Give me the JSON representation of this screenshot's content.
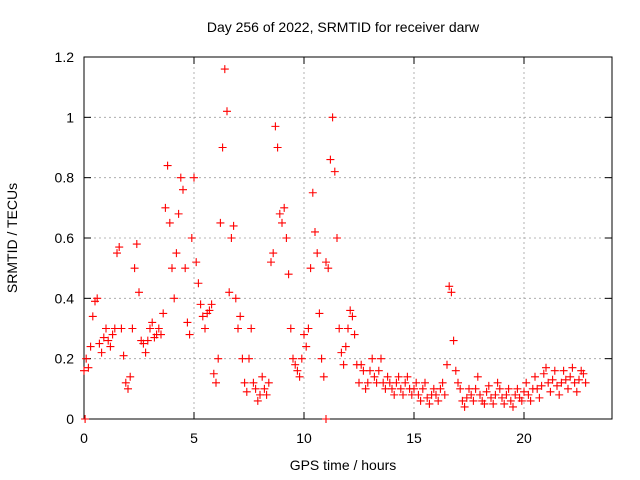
{
  "chart_data": {
    "type": "scatter",
    "title": "Day 256 of 2022, SRMTID for receiver darw",
    "xlabel": "GPS time / hours",
    "ylabel": "SRMTID / TECUs",
    "xlim": [
      0,
      24
    ],
    "ylim": [
      0,
      1.2
    ],
    "grid": true,
    "marker": "+",
    "color": "#ff0000",
    "x_ticks": [
      0,
      5,
      10,
      15,
      20
    ],
    "x_tick_labels": [
      "0",
      "5",
      "10",
      "15",
      "20"
    ],
    "y_ticks": [
      0,
      0.2,
      0.4,
      0.6,
      0.8,
      1.0,
      1.2
    ],
    "y_tick_labels": [
      "0",
      "0.2",
      "0.4",
      "0.6",
      "0.8",
      "1",
      "1.2"
    ],
    "series": [
      {
        "name": "SRMTID",
        "points": [
          [
            0.0,
            0.16
          ],
          [
            0.1,
            0.2
          ],
          [
            0.2,
            0.17
          ],
          [
            0.3,
            0.24
          ],
          [
            0.4,
            0.34
          ],
          [
            0.5,
            0.39
          ],
          [
            0.6,
            0.4
          ],
          [
            0.7,
            0.25
          ],
          [
            0.8,
            0.22
          ],
          [
            0.9,
            0.27
          ],
          [
            1.0,
            0.3
          ],
          [
            1.1,
            0.26
          ],
          [
            1.2,
            0.24
          ],
          [
            1.3,
            0.28
          ],
          [
            1.4,
            0.3
          ],
          [
            1.5,
            0.55
          ],
          [
            1.6,
            0.57
          ],
          [
            1.7,
            0.3
          ],
          [
            1.8,
            0.21
          ],
          [
            1.9,
            0.12
          ],
          [
            2.0,
            0.1
          ],
          [
            2.1,
            0.14
          ],
          [
            2.2,
            0.3
          ],
          [
            2.3,
            0.5
          ],
          [
            2.4,
            0.58
          ],
          [
            2.5,
            0.42
          ],
          [
            2.6,
            0.26
          ],
          [
            2.7,
            0.25
          ],
          [
            2.8,
            0.22
          ],
          [
            2.9,
            0.26
          ],
          [
            3.0,
            0.3
          ],
          [
            3.1,
            0.32
          ],
          [
            3.2,
            0.27
          ],
          [
            3.3,
            0.28
          ],
          [
            3.4,
            0.3
          ],
          [
            3.5,
            0.28
          ],
          [
            3.6,
            0.35
          ],
          [
            3.7,
            0.7
          ],
          [
            3.8,
            0.84
          ],
          [
            3.9,
            0.65
          ],
          [
            4.0,
            0.5
          ],
          [
            4.1,
            0.4
          ],
          [
            4.2,
            0.55
          ],
          [
            4.3,
            0.68
          ],
          [
            4.4,
            0.8
          ],
          [
            4.5,
            0.76
          ],
          [
            4.6,
            0.5
          ],
          [
            4.7,
            0.32
          ],
          [
            4.8,
            0.28
          ],
          [
            4.9,
            0.6
          ],
          [
            5.0,
            0.8
          ],
          [
            5.1,
            0.52
          ],
          [
            5.2,
            0.45
          ],
          [
            5.3,
            0.38
          ],
          [
            5.4,
            0.34
          ],
          [
            5.5,
            0.3
          ],
          [
            5.6,
            0.35
          ],
          [
            5.7,
            0.36
          ],
          [
            5.8,
            0.38
          ],
          [
            5.9,
            0.15
          ],
          [
            6.0,
            0.12
          ],
          [
            6.1,
            0.2
          ],
          [
            6.2,
            0.65
          ],
          [
            6.3,
            0.9
          ],
          [
            6.4,
            1.16
          ],
          [
            6.5,
            1.02
          ],
          [
            6.6,
            0.42
          ],
          [
            6.7,
            0.6
          ],
          [
            6.8,
            0.64
          ],
          [
            6.9,
            0.4
          ],
          [
            7.0,
            0.3
          ],
          [
            7.1,
            0.34
          ],
          [
            7.2,
            0.2
          ],
          [
            7.3,
            0.12
          ],
          [
            7.4,
            0.09
          ],
          [
            7.5,
            0.2
          ],
          [
            7.6,
            0.3
          ],
          [
            7.7,
            0.12
          ],
          [
            7.8,
            0.1
          ],
          [
            7.9,
            0.06
          ],
          [
            8.0,
            0.08
          ],
          [
            8.1,
            0.14
          ],
          [
            8.2,
            0.1
          ],
          [
            8.3,
            0.08
          ],
          [
            8.4,
            0.12
          ],
          [
            8.5,
            0.52
          ],
          [
            8.6,
            0.55
          ],
          [
            8.7,
            0.97
          ],
          [
            8.8,
            0.9
          ],
          [
            8.9,
            0.68
          ],
          [
            9.0,
            0.65
          ],
          [
            9.1,
            0.7
          ],
          [
            9.2,
            0.6
          ],
          [
            9.3,
            0.48
          ],
          [
            9.4,
            0.3
          ],
          [
            9.5,
            0.2
          ],
          [
            9.6,
            0.18
          ],
          [
            9.7,
            0.16
          ],
          [
            9.8,
            0.14
          ],
          [
            9.9,
            0.2
          ],
          [
            10.0,
            0.28
          ],
          [
            10.1,
            0.24
          ],
          [
            10.2,
            0.3
          ],
          [
            10.3,
            0.5
          ],
          [
            10.4,
            0.75
          ],
          [
            10.5,
            0.62
          ],
          [
            10.6,
            0.55
          ],
          [
            10.7,
            0.35
          ],
          [
            10.8,
            0.2
          ],
          [
            10.9,
            0.14
          ],
          [
            11.0,
            0.52
          ],
          [
            11.1,
            0.5
          ],
          [
            11.2,
            0.86
          ],
          [
            11.3,
            1.0
          ],
          [
            11.4,
            0.82
          ],
          [
            11.5,
            0.6
          ],
          [
            11.6,
            0.3
          ],
          [
            11.7,
            0.22
          ],
          [
            11.8,
            0.18
          ],
          [
            11.9,
            0.24
          ],
          [
            12.0,
            0.3
          ],
          [
            12.1,
            0.36
          ],
          [
            12.2,
            0.34
          ],
          [
            12.3,
            0.28
          ],
          [
            12.4,
            0.18
          ],
          [
            12.5,
            0.12
          ],
          [
            12.6,
            0.18
          ],
          [
            12.7,
            0.16
          ],
          [
            12.8,
            0.1
          ],
          [
            12.9,
            0.12
          ],
          [
            13.0,
            0.16
          ],
          [
            13.1,
            0.2
          ],
          [
            13.2,
            0.14
          ],
          [
            13.3,
            0.12
          ],
          [
            13.4,
            0.16
          ],
          [
            13.5,
            0.2
          ],
          [
            13.6,
            0.12
          ],
          [
            13.7,
            0.1
          ],
          [
            13.8,
            0.14
          ],
          [
            13.9,
            0.12
          ],
          [
            14.0,
            0.1
          ],
          [
            14.1,
            0.08
          ],
          [
            14.2,
            0.12
          ],
          [
            14.3,
            0.14
          ],
          [
            14.4,
            0.1
          ],
          [
            14.5,
            0.08
          ],
          [
            14.6,
            0.12
          ],
          [
            14.7,
            0.14
          ],
          [
            14.8,
            0.1
          ],
          [
            14.9,
            0.08
          ],
          [
            15.0,
            0.1
          ],
          [
            15.1,
            0.12
          ],
          [
            15.2,
            0.08
          ],
          [
            15.3,
            0.06
          ],
          [
            15.4,
            0.1
          ],
          [
            15.5,
            0.12
          ],
          [
            15.6,
            0.07
          ],
          [
            15.7,
            0.05
          ],
          [
            15.8,
            0.08
          ],
          [
            15.9,
            0.1
          ],
          [
            16.0,
            0.08
          ],
          [
            16.1,
            0.06
          ],
          [
            16.2,
            0.1
          ],
          [
            16.3,
            0.12
          ],
          [
            16.4,
            0.08
          ],
          [
            16.5,
            0.18
          ],
          [
            16.6,
            0.44
          ],
          [
            16.7,
            0.42
          ],
          [
            16.8,
            0.26
          ],
          [
            16.9,
            0.16
          ],
          [
            17.0,
            0.12
          ],
          [
            17.1,
            0.1
          ],
          [
            17.2,
            0.06
          ],
          [
            17.3,
            0.04
          ],
          [
            17.4,
            0.07
          ],
          [
            17.5,
            0.1
          ],
          [
            17.6,
            0.08
          ],
          [
            17.7,
            0.06
          ],
          [
            17.8,
            0.1
          ],
          [
            17.9,
            0.14
          ],
          [
            18.0,
            0.08
          ],
          [
            18.1,
            0.06
          ],
          [
            18.2,
            0.05
          ],
          [
            18.3,
            0.09
          ],
          [
            18.4,
            0.11
          ],
          [
            18.5,
            0.07
          ],
          [
            18.6,
            0.05
          ],
          [
            18.7,
            0.08
          ],
          [
            18.8,
            0.12
          ],
          [
            18.9,
            0.1
          ],
          [
            19.0,
            0.07
          ],
          [
            19.1,
            0.05
          ],
          [
            19.2,
            0.08
          ],
          [
            19.3,
            0.1
          ],
          [
            19.4,
            0.06
          ],
          [
            19.5,
            0.04
          ],
          [
            19.6,
            0.08
          ],
          [
            19.7,
            0.1
          ],
          [
            19.8,
            0.07
          ],
          [
            19.9,
            0.06
          ],
          [
            20.0,
            0.09
          ],
          [
            20.1,
            0.12
          ],
          [
            20.2,
            0.08
          ],
          [
            20.3,
            0.06
          ],
          [
            20.4,
            0.1
          ],
          [
            20.5,
            0.14
          ],
          [
            20.6,
            0.1
          ],
          [
            20.7,
            0.07
          ],
          [
            20.8,
            0.11
          ],
          [
            20.9,
            0.15
          ],
          [
            21.0,
            0.17
          ],
          [
            21.1,
            0.12
          ],
          [
            21.2,
            0.09
          ],
          [
            21.3,
            0.13
          ],
          [
            21.4,
            0.16
          ],
          [
            21.5,
            0.11
          ],
          [
            21.6,
            0.08
          ],
          [
            21.7,
            0.12
          ],
          [
            21.8,
            0.16
          ],
          [
            21.9,
            0.13
          ],
          [
            22.0,
            0.1
          ],
          [
            22.1,
            0.14
          ],
          [
            22.2,
            0.17
          ],
          [
            22.3,
            0.12
          ],
          [
            22.4,
            0.09
          ],
          [
            22.5,
            0.13
          ],
          [
            22.6,
            0.16
          ],
          [
            22.7,
            0.15
          ],
          [
            22.8,
            0.12
          ],
          [
            0.05,
            0.0
          ],
          [
            11.0,
            0.0
          ]
        ]
      }
    ]
  }
}
